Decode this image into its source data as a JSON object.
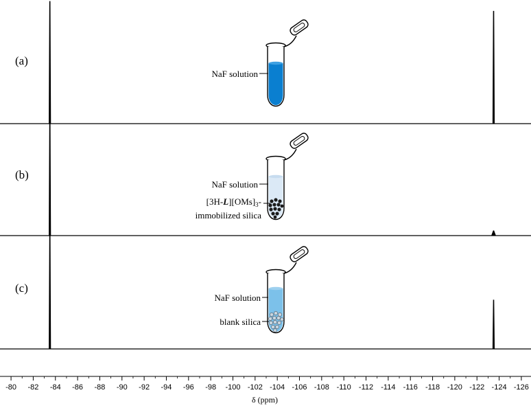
{
  "chart_data": {
    "type": "line",
    "xlabel": "δ (ppm)",
    "xlim": [
      -79.5,
      -126.5
    ],
    "x_reversed": true,
    "ticks": [
      -80,
      -82,
      -84,
      -86,
      -88,
      -90,
      -92,
      -94,
      -96,
      -98,
      -100,
      -102,
      -104,
      -106,
      -108,
      -110,
      -112,
      -114,
      -116,
      -118,
      -120,
      -122,
      -124,
      -126
    ],
    "grid": false,
    "panels": [
      {
        "label": "(a)",
        "peaks": [
          {
            "x": -83.5,
            "height": 1.0
          },
          {
            "x": -123.5,
            "height": 0.92
          }
        ],
        "annotation": [
          "NaF solution"
        ]
      },
      {
        "label": "(b)",
        "peaks": [
          {
            "x": -83.5,
            "height": 1.0
          },
          {
            "x": -123.5,
            "height": 0.04
          }
        ],
        "annotation": [
          "NaF solution",
          "[3H-L][OMs]3-",
          "immobilized silica"
        ]
      },
      {
        "label": "(c)",
        "peaks": [
          {
            "x": -83.5,
            "height": 1.0
          },
          {
            "x": -123.5,
            "height": 0.4
          }
        ],
        "annotation": [
          "NaF solution",
          "blank silica"
        ]
      }
    ]
  },
  "labels": {
    "a_naf": "NaF solution",
    "b_naf": "NaF solution",
    "b_complex_pre": "[3H-",
    "b_complex_L": "L",
    "b_complex_mid": "][OMs]",
    "b_complex_sub": "3",
    "b_complex_post": "-",
    "b_immobilized": "immobilized silica",
    "c_naf": "NaF solution",
    "c_blank": "blank silica"
  },
  "colors": {
    "solution_a": "#0a7fd0",
    "solution_b": "#dbe9f6",
    "solution_c": "#7cc1ea",
    "silica_dark": "#1a1a1a",
    "silica_blank": "#c9d6e0",
    "trace": "#000000"
  }
}
